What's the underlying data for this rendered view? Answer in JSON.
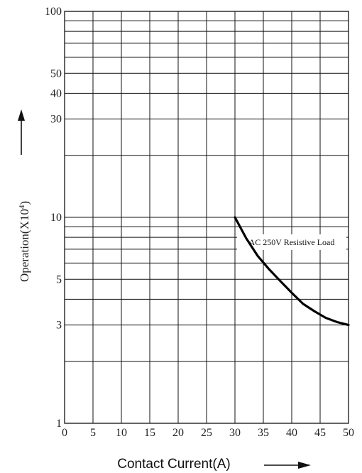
{
  "chart_data": {
    "type": "line",
    "xlabel": "Contact Current(A)",
    "ylabel": "Operation(X10",
    "ylabel_sup": "4",
    "ylabel_close": ")",
    "x_ticks": [
      "0",
      "5",
      "10",
      "15",
      "20",
      "25",
      "30",
      "35",
      "40",
      "45",
      "50"
    ],
    "y_tick_labels": [
      {
        "value": 1,
        "label": "1"
      },
      {
        "value": 3,
        "label": "3"
      },
      {
        "value": 5,
        "label": "5"
      },
      {
        "value": 10,
        "label": "10"
      },
      {
        "value": 30,
        "label": "30"
      },
      {
        "value": 40,
        "label": "40"
      },
      {
        "value": 50,
        "label": "50"
      },
      {
        "value": 100,
        "label": "100"
      }
    ],
    "y_gridlines": [
      1,
      2,
      3,
      4,
      5,
      6,
      7,
      8,
      9,
      10,
      20,
      30,
      40,
      50,
      60,
      70,
      80,
      90,
      100
    ],
    "xlim": [
      0,
      50
    ],
    "ylim": [
      1,
      100
    ],
    "y_scale": "log",
    "grid": true,
    "series": [
      {
        "name": "AC 250V Resistive Load",
        "x": [
          30,
          32,
          34,
          36,
          38,
          40,
          42,
          44,
          46,
          48,
          50
        ],
        "y": [
          10,
          7.9,
          6.5,
          5.6,
          4.9,
          4.3,
          3.8,
          3.5,
          3.25,
          3.1,
          3.0
        ]
      }
    ],
    "annotation": "AC 250V Resistive Load"
  }
}
